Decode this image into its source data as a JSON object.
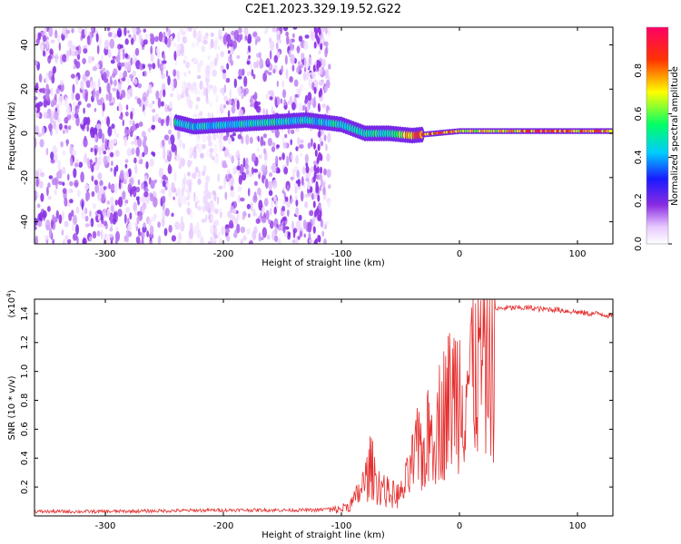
{
  "title": "C2E1.2023.329.19.52.G22",
  "colors": {
    "snr_line": "#e53030",
    "axis": "#000000",
    "background": "#ffffff"
  },
  "chart_data": [
    {
      "type": "heatmap",
      "xlabel": "Height of straight line (km)",
      "ylabel": "Frequency (Hz)",
      "xlim": [
        -360,
        130
      ],
      "ylim": [
        -50,
        48
      ],
      "xticks": [
        "-300",
        "-200",
        "-100",
        "0",
        "100"
      ],
      "yticks": [
        "40",
        "20",
        "0",
        "-20",
        "-40"
      ],
      "colorbar": {
        "label": "Normalized spectral amplitude",
        "range": [
          0,
          1
        ],
        "ticks": [
          "0.0",
          "0.2",
          "0.4",
          "0.6",
          "0.8"
        ],
        "colormap": "rainbow (white→purple→blue→cyan→green→yellow→red→magenta)"
      },
      "ridge": [
        {
          "x": -240,
          "y": 5,
          "amp": 0.5
        },
        {
          "x": -225,
          "y": 3,
          "amp": 0.45
        },
        {
          "x": -160,
          "y": 5,
          "amp": 0.5
        },
        {
          "x": -130,
          "y": 6,
          "amp": 0.45
        },
        {
          "x": -100,
          "y": 4,
          "amp": 0.5
        },
        {
          "x": -80,
          "y": 0,
          "amp": 0.55
        },
        {
          "x": -60,
          "y": 0,
          "amp": 0.5
        },
        {
          "x": -40,
          "y": -1,
          "amp": 0.8
        },
        {
          "x": -20,
          "y": 0,
          "amp": 0.85
        },
        {
          "x": 0,
          "y": 1,
          "amp": 0.75
        },
        {
          "x": 40,
          "y": 1,
          "amp": 0.7
        },
        {
          "x": 70,
          "y": 1,
          "amp": 0.9
        },
        {
          "x": 100,
          "y": 1,
          "amp": 0.8
        },
        {
          "x": 130,
          "y": 1,
          "amp": 0.85
        }
      ]
    },
    {
      "type": "line",
      "xlabel": "Height of straight line (km)",
      "ylabel": "SNR (10 * v/v)",
      "y_multiplier": "(x10",
      "y_multiplier_exp": "4",
      "y_multiplier_close": ")",
      "xlim": [
        -360,
        130
      ],
      "ylim": [
        0,
        1.5
      ],
      "xticks": [
        "-300",
        "-200",
        "-100",
        "0",
        "100"
      ],
      "yticks": [
        "0.2",
        "0.4",
        "0.6",
        "0.8",
        "1.0",
        "1.2",
        "1.4"
      ],
      "series": [
        {
          "x": [
            -360,
            -300,
            -200,
            -120,
            -100,
            -90,
            -80,
            -75,
            -70,
            -60,
            -50,
            -45,
            -40,
            -35,
            -30,
            -25,
            -20,
            -15,
            -10,
            -5,
            0,
            5,
            10,
            20,
            30,
            40,
            50,
            60,
            70,
            80,
            90,
            100,
            110,
            120,
            130
          ],
          "values": [
            0.03,
            0.03,
            0.04,
            0.04,
            0.06,
            0.12,
            0.3,
            0.45,
            0.3,
            0.2,
            0.18,
            0.3,
            0.45,
            0.6,
            0.55,
            0.75,
            0.8,
            0.9,
            1.0,
            1.1,
            1.15,
            1.2,
            1.3,
            1.4,
            1.43,
            1.44,
            1.44,
            1.44,
            1.43,
            1.43,
            1.42,
            1.41,
            1.4,
            1.4,
            1.38
          ]
        }
      ]
    }
  ]
}
